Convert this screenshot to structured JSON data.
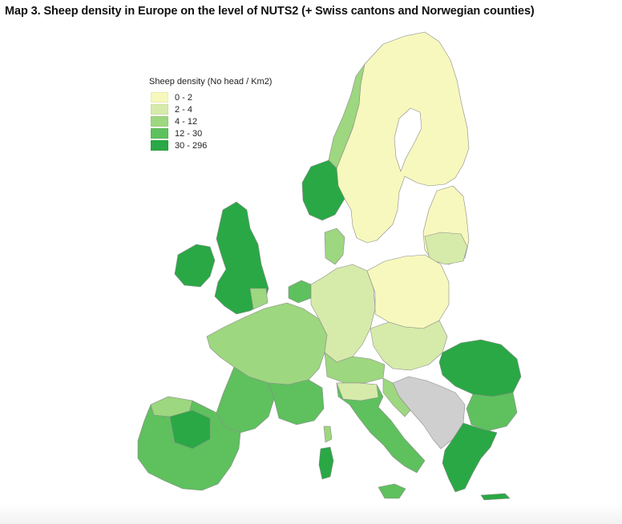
{
  "title": "Map 3. Sheep density in Europe on the level of NUTS2 (+ Swiss cantons and Norwegian counties)",
  "legend": {
    "title": "Sheep density (No head / Km2)",
    "items": [
      {
        "label": "0 - 2",
        "color": "#f7f8bd"
      },
      {
        "label": "2 - 4",
        "color": "#d6ebaa"
      },
      {
        "label": "4 - 12",
        "color": "#9dd77f"
      },
      {
        "label": "12 - 30",
        "color": "#5fc05e"
      },
      {
        "label": "30 - 296",
        "color": "#2aa845"
      }
    ]
  },
  "colors": {
    "no_data": "#cfcfcf",
    "border": "#8c8c8c",
    "c0": "#f7f8bd",
    "c1": "#d6ebaa",
    "c2": "#9dd77f",
    "c3": "#5fc05e",
    "c4": "#2aa845"
  },
  "regions": [
    {
      "id": "norway-west",
      "class": "30 - 296"
    },
    {
      "id": "norway-north",
      "class": "4 - 12"
    },
    {
      "id": "sweden-finland",
      "class": "0 - 2"
    },
    {
      "id": "united-kingdom",
      "class": "30 - 296"
    },
    {
      "id": "ireland",
      "class": "30 - 296"
    },
    {
      "id": "france-north",
      "class": "4 - 12"
    },
    {
      "id": "france-south-west",
      "class": "12 - 30"
    },
    {
      "id": "iberia",
      "class": "12 - 30"
    },
    {
      "id": "germany",
      "class": "2 - 4"
    },
    {
      "id": "poland",
      "class": "0 - 2"
    },
    {
      "id": "baltics",
      "class": "0 - 2"
    },
    {
      "id": "italy",
      "class": "12 - 30"
    },
    {
      "id": "sardinia",
      "class": "30 - 296"
    },
    {
      "id": "balkans-nodata",
      "class": "no data"
    },
    {
      "id": "romania",
      "class": "30 - 296"
    },
    {
      "id": "greece",
      "class": "30 - 296"
    }
  ]
}
